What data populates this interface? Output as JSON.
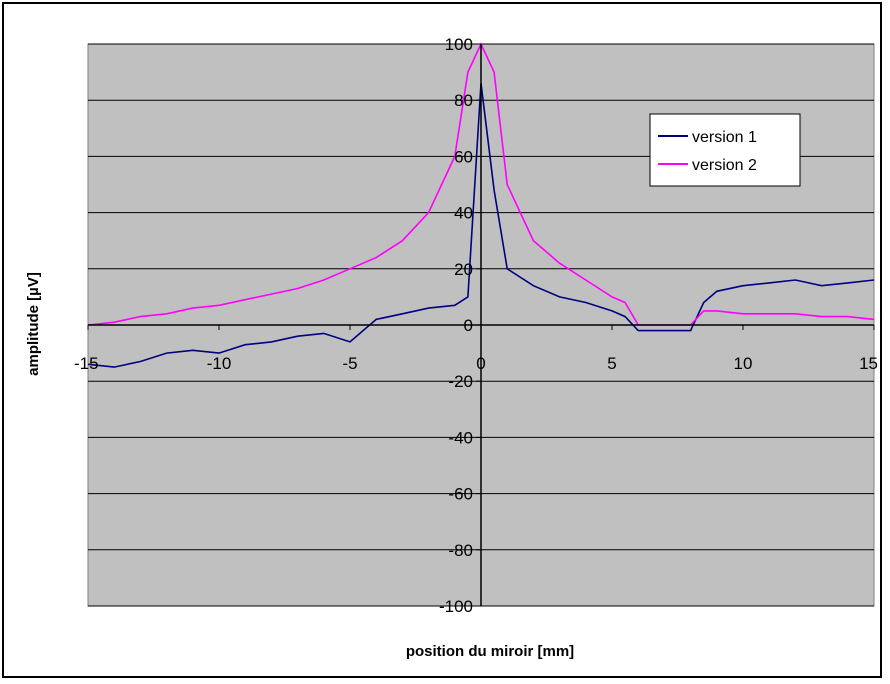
{
  "chart_data": {
    "type": "line",
    "title": "",
    "xlabel": "position du miroir [mm]",
    "ylabel": "amplitude [µV]",
    "xlim": [
      -15,
      15
    ],
    "ylim": [
      -100,
      100
    ],
    "x_ticks": [
      "-15",
      "-10",
      "-5",
      "0",
      "5",
      "10",
      "15"
    ],
    "y_ticks": [
      "100",
      "80",
      "60",
      "40",
      "20",
      "0",
      "-20",
      "-40",
      "-60",
      "-80",
      "-100"
    ],
    "grid": "horizontal",
    "background_color": "#c0c0c0",
    "legend_position": "top-right",
    "series": [
      {
        "name": "version 1",
        "color": "#000080",
        "x": [
          -15,
          -14,
          -13,
          -12,
          -11,
          -10,
          -9,
          -8,
          -7,
          -6,
          -5,
          -4,
          -3,
          -2,
          -1,
          -0.5,
          0,
          0.5,
          1,
          2,
          3,
          4,
          5,
          5.5,
          6,
          7,
          8,
          8.5,
          9,
          10,
          11,
          12,
          13,
          14,
          15
        ],
        "y": [
          -14,
          -15,
          -13,
          -10,
          -9,
          -10,
          -7,
          -6,
          -4,
          -3,
          -6,
          2,
          4,
          6,
          7,
          10,
          86,
          48,
          20,
          14,
          10,
          8,
          5,
          3,
          -2,
          -2,
          -2,
          8,
          12,
          14,
          15,
          16,
          14,
          15,
          16
        ]
      },
      {
        "name": "version 2",
        "color": "#ff00ff",
        "x": [
          -15,
          -14,
          -13,
          -12,
          -11,
          -10,
          -9,
          -8,
          -7,
          -6,
          -5,
          -4,
          -3,
          -2,
          -1,
          -0.5,
          0,
          0.5,
          1,
          2,
          3,
          4,
          5,
          5.5,
          6,
          7,
          8,
          8.5,
          9,
          10,
          11,
          12,
          13,
          14,
          15
        ],
        "y": [
          0,
          1,
          3,
          4,
          6,
          7,
          9,
          11,
          13,
          16,
          20,
          24,
          30,
          40,
          60,
          90,
          100,
          90,
          50,
          30,
          22,
          16,
          10,
          8,
          0,
          0,
          0,
          5,
          5,
          4,
          4,
          4,
          3,
          3,
          2
        ]
      }
    ]
  }
}
